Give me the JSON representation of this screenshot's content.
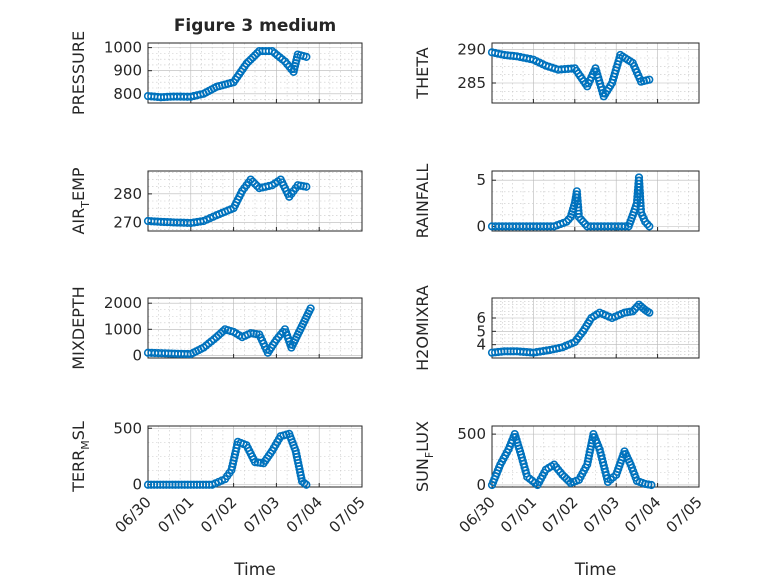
{
  "colors": {
    "marker": "#0072BD",
    "axis": "#262626"
  },
  "chart_data": [
    {
      "id": "pressure",
      "type": "scatter",
      "title": "Figure 3 medium",
      "ylabel": "PRESSURE",
      "xlim": [
        0,
        5
      ],
      "ylim": [
        760,
        1020
      ],
      "yticks": [
        800,
        900,
        1000
      ],
      "xticks": [
        0,
        1,
        2,
        3,
        4,
        5
      ],
      "xticklabels": [
        "06/30",
        "07/01",
        "07/02",
        "07/03",
        "07/04",
        "07/05"
      ],
      "show_xticklabels": false,
      "points": [
        [
          0.0,
          790
        ],
        [
          0.3,
          785
        ],
        [
          0.6,
          788
        ],
        [
          1.0,
          787
        ],
        [
          1.3,
          800
        ],
        [
          1.6,
          830
        ],
        [
          2.0,
          850
        ],
        [
          2.3,
          930
        ],
        [
          2.6,
          985
        ],
        [
          2.9,
          985
        ],
        [
          3.2,
          940
        ],
        [
          3.4,
          895
        ],
        [
          3.5,
          970
        ],
        [
          3.7,
          960
        ]
      ]
    },
    {
      "id": "theta",
      "type": "scatter",
      "ylabel": "THETA",
      "xlim": [
        0,
        5
      ],
      "ylim": [
        282,
        291
      ],
      "yticks": [
        285,
        290
      ],
      "xticks": [
        0,
        1,
        2,
        3,
        4,
        5
      ],
      "xticklabels": [
        "06/30",
        "07/01",
        "07/02",
        "07/03",
        "07/04",
        "07/05"
      ],
      "show_xticklabels": false,
      "points": [
        [
          0.0,
          289.6
        ],
        [
          0.3,
          289.2
        ],
        [
          0.6,
          289.0
        ],
        [
          1.0,
          288.5
        ],
        [
          1.3,
          287.6
        ],
        [
          1.6,
          287.0
        ],
        [
          2.0,
          287.2
        ],
        [
          2.3,
          284.5
        ],
        [
          2.5,
          287.2
        ],
        [
          2.7,
          283.0
        ],
        [
          2.9,
          285.0
        ],
        [
          3.1,
          289.2
        ],
        [
          3.4,
          288.0
        ],
        [
          3.6,
          285.2
        ],
        [
          3.8,
          285.5
        ]
      ]
    },
    {
      "id": "air-temp",
      "type": "scatter",
      "ylabel": "AIR",
      "ylabel_sub": "T",
      "ylabel_rest": "EMP",
      "xlim": [
        0,
        5
      ],
      "ylim": [
        267,
        288
      ],
      "yticks": [
        270,
        280
      ],
      "xticks": [
        0,
        1,
        2,
        3,
        4,
        5
      ],
      "xticklabels": [
        "06/30",
        "07/01",
        "07/02",
        "07/03",
        "07/04",
        "07/05"
      ],
      "show_xticklabels": false,
      "points": [
        [
          0.0,
          270.5
        ],
        [
          0.3,
          270.2
        ],
        [
          0.6,
          270.0
        ],
        [
          1.0,
          269.8
        ],
        [
          1.3,
          270.5
        ],
        [
          1.6,
          272.5
        ],
        [
          2.0,
          275.0
        ],
        [
          2.2,
          281.0
        ],
        [
          2.4,
          285.0
        ],
        [
          2.6,
          282.0
        ],
        [
          2.9,
          283.0
        ],
        [
          3.1,
          285.0
        ],
        [
          3.3,
          279.0
        ],
        [
          3.5,
          283.0
        ],
        [
          3.7,
          282.5
        ]
      ]
    },
    {
      "id": "rainfall",
      "type": "scatter",
      "ylabel": "RAINFALL",
      "xlim": [
        0,
        5
      ],
      "ylim": [
        -0.5,
        6
      ],
      "yticks": [
        0,
        5
      ],
      "xticks": [
        0,
        1,
        2,
        3,
        4,
        5
      ],
      "xticklabels": [
        "06/30",
        "07/01",
        "07/02",
        "07/03",
        "07/04",
        "07/05"
      ],
      "show_xticklabels": false,
      "points": [
        [
          0.0,
          0
        ],
        [
          0.5,
          0
        ],
        [
          1.0,
          0
        ],
        [
          1.5,
          0
        ],
        [
          1.8,
          0.5
        ],
        [
          1.9,
          1.0
        ],
        [
          2.0,
          2.5
        ],
        [
          2.05,
          3.8
        ],
        [
          2.1,
          1.0
        ],
        [
          2.3,
          0
        ],
        [
          2.8,
          0
        ],
        [
          3.3,
          0
        ],
        [
          3.4,
          1.2
        ],
        [
          3.5,
          2.5
        ],
        [
          3.55,
          5.3
        ],
        [
          3.6,
          1.5
        ],
        [
          3.7,
          0.5
        ],
        [
          3.8,
          0
        ]
      ]
    },
    {
      "id": "mixdepth",
      "type": "scatter",
      "ylabel": "MIXDEPTH",
      "xlim": [
        0,
        5
      ],
      "ylim": [
        -100,
        2200
      ],
      "yticks": [
        0,
        1000,
        2000
      ],
      "xticks": [
        0,
        1,
        2,
        3,
        4,
        5
      ],
      "xticklabels": [
        "06/30",
        "07/01",
        "07/02",
        "07/03",
        "07/04",
        "07/05"
      ],
      "show_xticklabels": false,
      "points": [
        [
          0.0,
          100
        ],
        [
          0.4,
          80
        ],
        [
          0.7,
          60
        ],
        [
          1.0,
          50
        ],
        [
          1.3,
          300
        ],
        [
          1.6,
          700
        ],
        [
          1.8,
          1000
        ],
        [
          2.0,
          900
        ],
        [
          2.2,
          700
        ],
        [
          2.4,
          850
        ],
        [
          2.6,
          800
        ],
        [
          2.8,
          100
        ],
        [
          3.0,
          600
        ],
        [
          3.2,
          1000
        ],
        [
          3.35,
          300
        ],
        [
          3.5,
          800
        ],
        [
          3.65,
          1300
        ],
        [
          3.8,
          1800
        ]
      ]
    },
    {
      "id": "h2omixra",
      "type": "scatter",
      "ylabel": "H2OMIXRA",
      "xlim": [
        0,
        5
      ],
      "ylim": [
        3.0,
        7.5
      ],
      "yticks": [
        4,
        5,
        6
      ],
      "xticks": [
        0,
        1,
        2,
        3,
        4,
        5
      ],
      "xticklabels": [
        "06/30",
        "07/01",
        "07/02",
        "07/03",
        "07/04",
        "07/05"
      ],
      "show_xticklabels": false,
      "points": [
        [
          0.0,
          3.4
        ],
        [
          0.3,
          3.5
        ],
        [
          0.6,
          3.5
        ],
        [
          1.0,
          3.4
        ],
        [
          1.4,
          3.6
        ],
        [
          1.7,
          3.8
        ],
        [
          2.0,
          4.2
        ],
        [
          2.2,
          5.0
        ],
        [
          2.4,
          6.0
        ],
        [
          2.6,
          6.4
        ],
        [
          2.9,
          6.0
        ],
        [
          3.2,
          6.4
        ],
        [
          3.4,
          6.5
        ],
        [
          3.55,
          7.0
        ],
        [
          3.7,
          6.6
        ],
        [
          3.8,
          6.4
        ]
      ]
    },
    {
      "id": "terr-msl",
      "type": "scatter",
      "ylabel": "TERR",
      "ylabel_sub": "M",
      "ylabel_rest": "SL",
      "xlim": [
        0,
        5
      ],
      "ylim": [
        -20,
        520
      ],
      "yticks": [
        0,
        500
      ],
      "xticks": [
        0,
        1,
        2,
        3,
        4,
        5
      ],
      "xticklabels": [
        "06/30",
        "07/01",
        "07/02",
        "07/03",
        "07/04",
        "07/05"
      ],
      "show_xticklabels": true,
      "xlabel": "Time",
      "points": [
        [
          0.0,
          0
        ],
        [
          0.5,
          0
        ],
        [
          1.0,
          0
        ],
        [
          1.5,
          0
        ],
        [
          1.8,
          50
        ],
        [
          1.95,
          130
        ],
        [
          2.1,
          380
        ],
        [
          2.3,
          350
        ],
        [
          2.5,
          200
        ],
        [
          2.7,
          190
        ],
        [
          2.9,
          300
        ],
        [
          3.1,
          430
        ],
        [
          3.3,
          450
        ],
        [
          3.45,
          300
        ],
        [
          3.6,
          30
        ],
        [
          3.7,
          0
        ]
      ]
    },
    {
      "id": "sun-flux",
      "type": "scatter",
      "ylabel": "SUN",
      "ylabel_sub": "F",
      "ylabel_rest": "LUX",
      "xlim": [
        0,
        5
      ],
      "ylim": [
        -20,
        580
      ],
      "yticks": [
        0,
        500
      ],
      "xticks": [
        0,
        1,
        2,
        3,
        4,
        5
      ],
      "xticklabels": [
        "06/30",
        "07/01",
        "07/02",
        "07/03",
        "07/04",
        "07/05"
      ],
      "show_xticklabels": true,
      "xlabel": "Time",
      "points": [
        [
          0.0,
          0
        ],
        [
          0.2,
          200
        ],
        [
          0.4,
          350
        ],
        [
          0.55,
          500
        ],
        [
          0.7,
          300
        ],
        [
          0.85,
          80
        ],
        [
          1.1,
          0
        ],
        [
          1.3,
          150
        ],
        [
          1.5,
          200
        ],
        [
          1.7,
          100
        ],
        [
          1.9,
          20
        ],
        [
          2.1,
          50
        ],
        [
          2.3,
          200
        ],
        [
          2.45,
          500
        ],
        [
          2.6,
          350
        ],
        [
          2.8,
          30
        ],
        [
          3.0,
          100
        ],
        [
          3.2,
          330
        ],
        [
          3.35,
          200
        ],
        [
          3.5,
          40
        ],
        [
          3.7,
          10
        ],
        [
          3.85,
          0
        ]
      ]
    }
  ]
}
